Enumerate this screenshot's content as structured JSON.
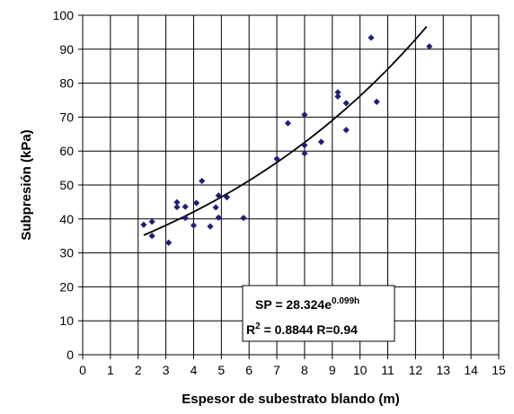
{
  "chart_data": {
    "type": "scatter",
    "xlabel": "Espesor de subestrato blando (m)",
    "ylabel": "Subpresión (kPa)",
    "xlim": [
      0,
      15
    ],
    "ylim": [
      0,
      100
    ],
    "x_ticks": [
      "0",
      "1",
      "2",
      "3",
      "4",
      "5",
      "6",
      "7",
      "8",
      "9",
      "10",
      "11",
      "12",
      "13",
      "14",
      "15"
    ],
    "y_ticks": [
      "0",
      "10",
      "20",
      "30",
      "40",
      "50",
      "60",
      "70",
      "80",
      "90",
      "100"
    ],
    "grid": true,
    "marker_color": "#1F1F7A",
    "trend_color": "#000000",
    "points": [
      {
        "x": 2.2,
        "y": 38.3
      },
      {
        "x": 2.5,
        "y": 39.2
      },
      {
        "x": 2.5,
        "y": 35.0
      },
      {
        "x": 3.1,
        "y": 33.0
      },
      {
        "x": 3.4,
        "y": 43.5
      },
      {
        "x": 3.4,
        "y": 44.9
      },
      {
        "x": 3.7,
        "y": 40.3
      },
      {
        "x": 3.7,
        "y": 43.6
      },
      {
        "x": 4.0,
        "y": 38.1
      },
      {
        "x": 4.1,
        "y": 44.7
      },
      {
        "x": 4.3,
        "y": 51.2
      },
      {
        "x": 4.6,
        "y": 37.8
      },
      {
        "x": 4.8,
        "y": 43.4
      },
      {
        "x": 4.9,
        "y": 40.4
      },
      {
        "x": 4.9,
        "y": 46.9
      },
      {
        "x": 5.2,
        "y": 46.4
      },
      {
        "x": 5.8,
        "y": 40.3
      },
      {
        "x": 7.0,
        "y": 57.7
      },
      {
        "x": 7.4,
        "y": 68.2
      },
      {
        "x": 8.0,
        "y": 59.3
      },
      {
        "x": 8.0,
        "y": 61.7
      },
      {
        "x": 8.0,
        "y": 70.7
      },
      {
        "x": 8.6,
        "y": 62.7
      },
      {
        "x": 9.2,
        "y": 76.1
      },
      {
        "x": 9.2,
        "y": 77.3
      },
      {
        "x": 9.5,
        "y": 74.1
      },
      {
        "x": 9.5,
        "y": 66.2
      },
      {
        "x": 10.4,
        "y": 93.4
      },
      {
        "x": 10.6,
        "y": 74.5
      },
      {
        "x": 12.5,
        "y": 90.8
      }
    ],
    "trendline": {
      "type": "exponential",
      "a": 28.324,
      "b": 0.099,
      "x_range": [
        2.2,
        12.4
      ]
    },
    "equation": {
      "line1_base": "SP = 28.324e",
      "line1_exp": "0.099h",
      "line2_prefix": "R",
      "line2_sup": "2",
      "line2_rest": " = 0.8844  R=0.94"
    }
  }
}
